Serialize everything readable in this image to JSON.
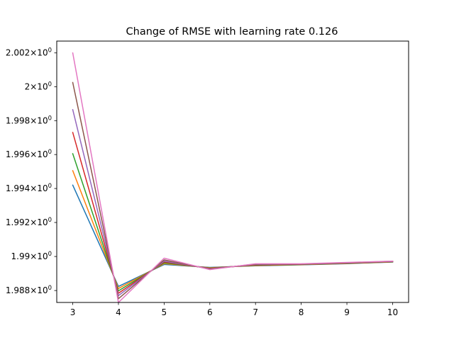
{
  "chart_data": {
    "type": "line",
    "title": "Change of RMSE with learning rate 0.126",
    "xlabel": "",
    "ylabel": "",
    "yscale": "log",
    "x": [
      3,
      4,
      5,
      6,
      7,
      8,
      9,
      10
    ],
    "xlim": [
      2.65,
      10.35
    ],
    "ylim": [
      1.9873,
      2.0027
    ],
    "xticks": [
      "3",
      "4",
      "5",
      "6",
      "7",
      "8",
      "9",
      "10"
    ],
    "yticks": [
      {
        "value": 1.988,
        "mantissa": "1.988"
      },
      {
        "value": 1.99,
        "mantissa": "1.99"
      },
      {
        "value": 1.992,
        "mantissa": "1.992"
      },
      {
        "value": 1.994,
        "mantissa": "1.994"
      },
      {
        "value": 1.996,
        "mantissa": "1.996"
      },
      {
        "value": 1.998,
        "mantissa": "1.998"
      },
      {
        "value": 2.0,
        "mantissa": "2"
      },
      {
        "value": 2.002,
        "mantissa": "2.002"
      }
    ],
    "ytick_suffix": "×10",
    "ytick_exponent": "0",
    "grid": false,
    "series": [
      {
        "color": "#1f77b4",
        "values": [
          1.9942,
          1.98824,
          1.98953,
          1.98936,
          1.98945,
          1.98951,
          1.98958,
          1.98967
        ]
      },
      {
        "color": "#ff7f0e",
        "values": [
          1.99505,
          1.98812,
          1.98958,
          1.98934,
          1.98947,
          1.98952,
          1.98959,
          1.98968
        ]
      },
      {
        "color": "#2ca02c",
        "values": [
          1.99605,
          1.98798,
          1.98963,
          1.98932,
          1.98949,
          1.98953,
          1.9896,
          1.98969
        ]
      },
      {
        "color": "#d62728",
        "values": [
          1.9973,
          1.98784,
          1.98968,
          1.9893,
          1.98951,
          1.98954,
          1.98961,
          1.9897
        ]
      },
      {
        "color": "#9467bd",
        "values": [
          1.99865,
          1.9877,
          1.98973,
          1.98928,
          1.98953,
          1.98955,
          1.98962,
          1.98971
        ]
      },
      {
        "color": "#8c564b",
        "values": [
          2.00025,
          1.98752,
          1.9898,
          1.98926,
          1.98955,
          1.98956,
          1.98963,
          1.98972
        ]
      },
      {
        "color": "#e377c2",
        "values": [
          2.002,
          1.9873,
          1.9899,
          1.98923,
          1.98957,
          1.98957,
          1.98965,
          1.98973
        ]
      }
    ]
  }
}
